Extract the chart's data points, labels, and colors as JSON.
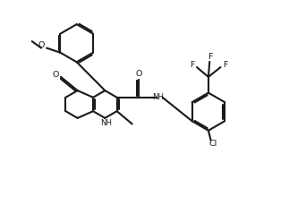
{
  "bg_color": "#ffffff",
  "line_color": "#1a1a1a",
  "lw": 1.5,
  "figsize": [
    3.23,
    2.29
  ],
  "dpi": 100,
  "xlim": [
    0,
    9.5
  ],
  "ylim": [
    0,
    6.7
  ]
}
